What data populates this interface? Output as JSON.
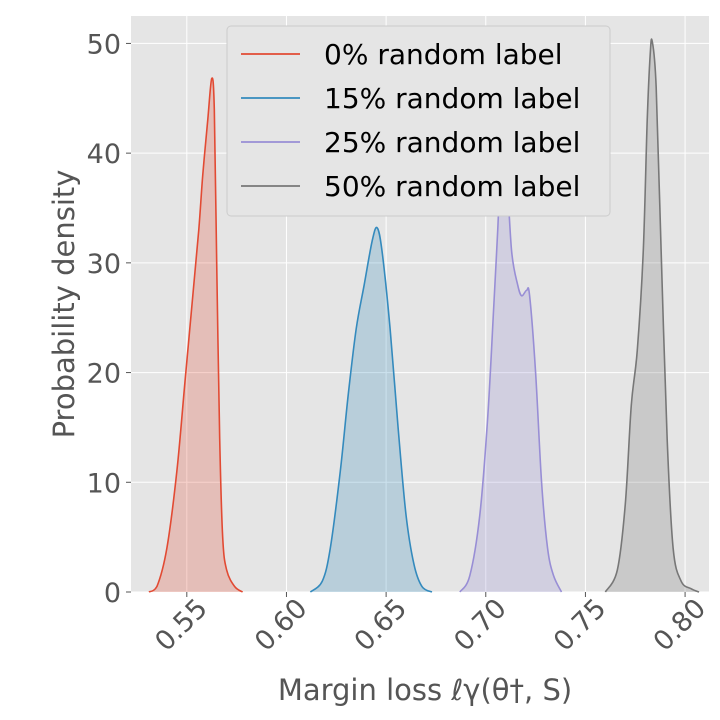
{
  "chart_data": {
    "type": "area",
    "title": "",
    "xlabel": "Margin loss ℓγ(θ†, S)",
    "ylabel": "Probability density",
    "xlim": [
      0.522,
      0.812
    ],
    "ylim": [
      0,
      52.5
    ],
    "xticks": [
      0.55,
      0.6,
      0.65,
      0.7,
      0.75,
      0.8
    ],
    "xtick_labels": [
      "0.55",
      "0.60",
      "0.65",
      "0.70",
      "0.75",
      "0.80"
    ],
    "yticks": [
      0,
      10,
      20,
      30,
      40,
      50
    ],
    "ytick_labels": [
      "0",
      "10",
      "20",
      "30",
      "40",
      "50"
    ],
    "grid": true,
    "legend_position": "top-center",
    "series": [
      {
        "name": "0% random label",
        "color": "#E24A33",
        "points": [
          [
            0.531,
            0
          ],
          [
            0.535,
            0.5
          ],
          [
            0.54,
            4
          ],
          [
            0.545,
            11
          ],
          [
            0.549,
            19
          ],
          [
            0.553,
            27
          ],
          [
            0.556,
            33
          ],
          [
            0.558,
            38
          ],
          [
            0.5605,
            43
          ],
          [
            0.5625,
            46.8
          ],
          [
            0.5638,
            44
          ],
          [
            0.565,
            30
          ],
          [
            0.5665,
            14
          ],
          [
            0.568,
            5
          ],
          [
            0.57,
            2
          ],
          [
            0.574,
            0.5
          ],
          [
            0.578,
            0
          ]
        ]
      },
      {
        "name": "15% random label",
        "color": "#348ABD",
        "points": [
          [
            0.612,
            0
          ],
          [
            0.618,
            1
          ],
          [
            0.622,
            4
          ],
          [
            0.627,
            11
          ],
          [
            0.631,
            18
          ],
          [
            0.635,
            24
          ],
          [
            0.639,
            28
          ],
          [
            0.643,
            32
          ],
          [
            0.6455,
            33.2
          ],
          [
            0.648,
            31
          ],
          [
            0.652,
            24
          ],
          [
            0.656,
            15
          ],
          [
            0.66,
            7
          ],
          [
            0.664,
            2.5
          ],
          [
            0.668,
            0.5
          ],
          [
            0.673,
            0
          ]
        ]
      },
      {
        "name": "25% random label",
        "color": "#988ED5",
        "points": [
          [
            0.687,
            0
          ],
          [
            0.692,
            1.5
          ],
          [
            0.697,
            7
          ],
          [
            0.701,
            16
          ],
          [
            0.704,
            26
          ],
          [
            0.706,
            33
          ],
          [
            0.708,
            40.5
          ],
          [
            0.7105,
            38
          ],
          [
            0.713,
            31
          ],
          [
            0.716,
            28
          ],
          [
            0.718,
            27
          ],
          [
            0.7205,
            27.5
          ],
          [
            0.722,
            27
          ],
          [
            0.725,
            20
          ],
          [
            0.728,
            10
          ],
          [
            0.731,
            4
          ],
          [
            0.734,
            1.5
          ],
          [
            0.738,
            0
          ]
        ]
      },
      {
        "name": "50% random label",
        "color": "#777777",
        "points": [
          [
            0.76,
            0
          ],
          [
            0.766,
            2
          ],
          [
            0.77,
            8
          ],
          [
            0.773,
            17
          ],
          [
            0.776,
            22
          ],
          [
            0.779,
            31
          ],
          [
            0.781,
            43
          ],
          [
            0.7825,
            49
          ],
          [
            0.7835,
            50.2
          ],
          [
            0.7855,
            46
          ],
          [
            0.788,
            31
          ],
          [
            0.791,
            14
          ],
          [
            0.794,
            4
          ],
          [
            0.798,
            1
          ],
          [
            0.803,
            0.3
          ],
          [
            0.807,
            0
          ]
        ]
      }
    ]
  }
}
